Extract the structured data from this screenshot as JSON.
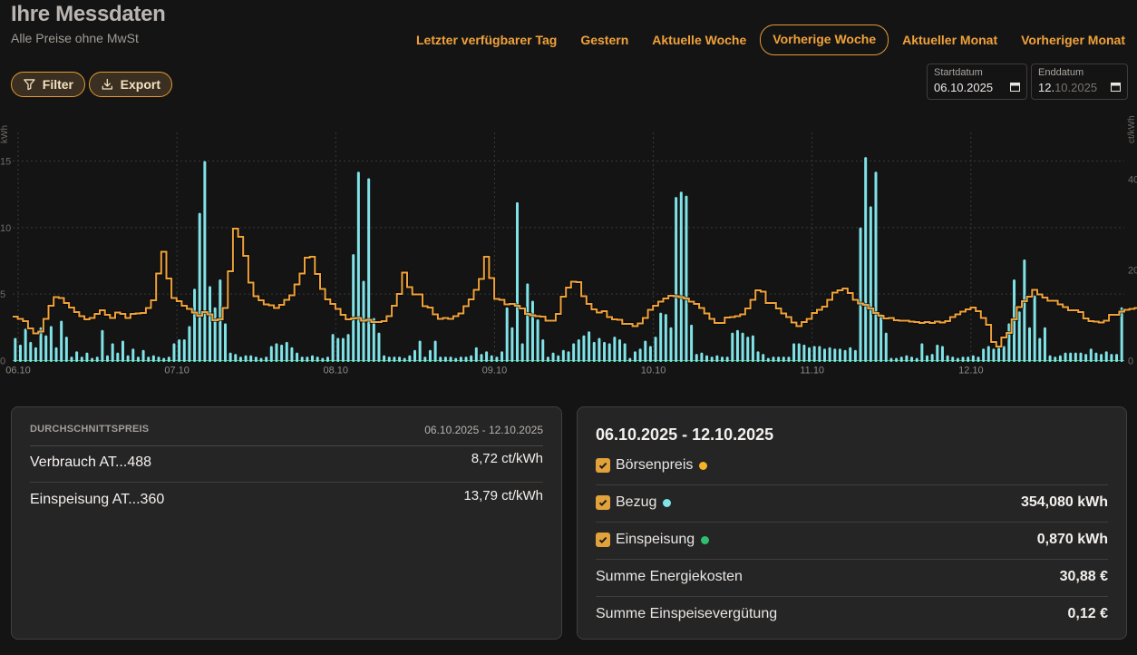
{
  "header": {
    "title": "Ihre Messdaten",
    "subtitle": "Alle Preise ohne MwSt"
  },
  "periods": [
    {
      "label": "Letzter verfügbarer Tag",
      "active": false
    },
    {
      "label": "Gestern",
      "active": false
    },
    {
      "label": "Aktuelle Woche",
      "active": false
    },
    {
      "label": "Vorherige Woche",
      "active": true
    },
    {
      "label": "Aktueller Monat",
      "active": false
    },
    {
      "label": "Vorheriger Monat",
      "active": false
    }
  ],
  "toolbar": {
    "filter_label": "Filter",
    "filter_icon": "funnel-icon",
    "export_label": "Export",
    "export_icon": "download-icon"
  },
  "date_range": {
    "start_label": "Startdatum",
    "start_value": "06.10.2025",
    "end_label": "Enddatum",
    "end_value_typed": "12.",
    "end_value_rest": "10.2025",
    "calendar_icon": "calendar-icon"
  },
  "chart_data": {
    "type": "bar",
    "x_tick_labels": [
      "06.10",
      "07.10",
      "08.10",
      "09.10",
      "10.10",
      "11.10",
      "12.10"
    ],
    "y_left": {
      "label": "kWh",
      "ticks": [
        "0",
        "5",
        "10",
        "15"
      ],
      "range": [
        0,
        15
      ]
    },
    "y_right": {
      "label": "ct/kWh",
      "ticks": [
        "0",
        "20",
        "40"
      ],
      "range": [
        0,
        40
      ]
    },
    "colors": {
      "bezug": "#7fe3e7",
      "price": "#f0a23a",
      "einspeisung": "#2fbf71"
    },
    "series": [
      {
        "name": "Bezug",
        "unit": "kWh",
        "values": [
          1.6,
          1.1,
          2.3,
          1.3,
          0.9,
          2.4,
          1.8,
          2.5,
          0.9,
          2.9,
          1.7,
          0.2,
          0.6,
          0.2,
          0.5,
          0.1,
          0.2,
          2.2,
          0.3,
          1.2,
          0.5,
          1.4,
          0.3,
          0.8,
          0.2,
          0.7,
          0.2,
          0.3,
          0.2,
          0.1,
          0.2,
          1.2,
          1.5,
          1.5,
          2.5,
          5.3,
          11.0,
          14.9,
          5.5,
          3.9,
          6.0,
          2.7,
          0.5,
          0.4,
          0.2,
          0.3,
          0.3,
          0.2,
          0.1,
          0.2,
          1.0,
          1.2,
          1.1,
          1.3,
          0.9,
          0.5,
          0.2,
          0.2,
          0.3,
          0.2,
          0.1,
          0.2,
          1.9,
          1.6,
          1.6,
          1.9,
          7.9,
          14.1,
          5.9,
          13.6,
          3.1,
          2.0,
          0.3,
          0.2,
          0.2,
          0.2,
          0.1,
          0.3,
          0.7,
          1.4,
          0.2,
          0.7,
          1.4,
          0.2,
          0.2,
          0.2,
          0.1,
          0.2,
          0.2,
          0.3,
          0.9,
          0.4,
          0.6,
          0.3,
          0.2,
          0.6,
          3.9,
          2.4,
          11.8,
          1.2,
          5.7,
          4.4,
          3.0,
          1.5,
          0.2,
          0.5,
          0.3,
          0.7,
          0.6,
          1.2,
          1.5,
          1.8,
          2.1,
          1.3,
          1.6,
          1.3,
          1.2,
          1.7,
          1.5,
          1.2,
          0.1,
          0.6,
          0.8,
          1.4,
          1.0,
          1.7,
          3.5,
          3.4,
          2.4,
          12.2,
          12.6,
          12.3,
          2.6,
          0.4,
          0.5,
          0.3,
          0.2,
          0.3,
          0.2,
          0.2,
          2.0,
          2.2,
          2.0,
          1.7,
          1.8,
          0.6,
          0.4,
          0.1,
          0.2,
          0.2,
          0.2,
          0.2,
          1.2,
          1.2,
          1.1,
          0.9,
          1.0,
          1.0,
          0.8,
          0.9,
          0.8,
          0.8,
          0.7,
          0.9,
          0.7,
          9.9,
          15.2,
          11.5,
          14.1,
          3.4,
          2.0,
          0.1,
          0.1,
          0.2,
          0.3,
          0.2,
          0.1,
          1.2,
          0.3,
          0.4,
          1.1,
          1.0,
          0.3,
          0.2,
          0.1,
          0.2,
          0.2,
          0.3,
          0.2,
          0.8,
          1.0,
          0.8,
          1.0,
          1.0,
          2.7,
          6.0,
          3.6,
          7.5,
          2.4,
          4.8,
          1.6,
          2.4,
          0.3,
          0.2,
          0.3,
          0.5,
          0.5,
          0.5,
          0.5,
          0.4,
          0.8,
          0.5,
          0.4,
          0.6,
          0.4,
          0.4,
          3.9
        ]
      },
      {
        "name": "Börsenpreis",
        "unit": "ct/kWh",
        "values": [
          9.7,
          9.2,
          8.7,
          7.1,
          6.0,
          6.4,
          9.2,
          12.1,
          14.0,
          13.8,
          12.7,
          11.7,
          10.7,
          9.8,
          9.1,
          9.4,
          10.3,
          11.1,
          10.1,
          9.4,
          10.6,
          10.3,
          9.4,
          10.3,
          10.4,
          10.5,
          11.6,
          13.3,
          19.2,
          24.0,
          18.1,
          13.8,
          13.1,
          12.1,
          11.4,
          10.6,
          9.9,
          10.7,
          10.2,
          8.9,
          9.1,
          11.6,
          19.7,
          29.1,
          27.3,
          23.1,
          17.2,
          14.2,
          13.3,
          12.4,
          12.2,
          11.6,
          12.3,
          13.4,
          14.4,
          16.8,
          19.2,
          22.7,
          22.9,
          19.1,
          15.8,
          13.5,
          12.5,
          11.4,
          10.1,
          9.1,
          9.3,
          9.4,
          8.8,
          9.0,
          8.5,
          8.5,
          8.7,
          9.8,
          12.1,
          14.7,
          19.4,
          16.2,
          14.6,
          14.6,
          12.0,
          11.7,
          10.2,
          9.2,
          9.4,
          9.2,
          9.8,
          10.4,
          12.0,
          13.5,
          15.6,
          18.0,
          22.9,
          18.2,
          13.6,
          13.4,
          12.4,
          12.5,
          12.1,
          11.5,
          10.3,
          10.0,
          9.8,
          9.7,
          8.8,
          8.8,
          10.3,
          14.1,
          16.1,
          17.4,
          17.3,
          14.2,
          12.5,
          11.3,
          10.6,
          10.9,
          9.6,
          9.1,
          9.0,
          8.1,
          8.1,
          7.6,
          8.2,
          9.4,
          11.2,
          12.1,
          13.0,
          13.7,
          14.3,
          14.2,
          14.0,
          13.7,
          13.0,
          12.5,
          11.6,
          10.4,
          9.2,
          8.3,
          8.3,
          9.5,
          9.6,
          9.8,
          10.2,
          11.5,
          13.4,
          15.5,
          15.2,
          12.7,
          12.7,
          11.5,
          10.4,
          9.6,
          8.4,
          7.6,
          8.5,
          9.2,
          10.5,
          11.2,
          11.9,
          13.4,
          15.0,
          15.5,
          15.9,
          14.9,
          13.4,
          12.6,
          12.3,
          11.5,
          10.5,
          9.9,
          9.3,
          9.4,
          8.9,
          8.8,
          8.8,
          8.6,
          8.5,
          8.3,
          8.5,
          8.3,
          8.6,
          8.4,
          8.7,
          9.6,
          10.2,
          10.8,
          11.3,
          11.7,
          10.9,
          9.4,
          7.9,
          4.1,
          3.1,
          5.1,
          6.1,
          9.1,
          11.8,
          13.1,
          14.1,
          15.6,
          14.6,
          13.9,
          13.2,
          13.2,
          12.4,
          11.8,
          11.1,
          11.1,
          10.7,
          9.3,
          8.7,
          8.6,
          8.4,
          8.8,
          10.1,
          10.1,
          10.8,
          11.2,
          11.4,
          11.6,
          11.0,
          9.3,
          7.6,
          8.4,
          8.3,
          8.6,
          9.1,
          9.8,
          11.0,
          11.9,
          12.6,
          13.6,
          13.6,
          13.3,
          13.3,
          13.8,
          12.2
        ]
      }
    ],
    "grid": true
  },
  "avg_card": {
    "heading": "DURCHSCHNITTSPREIS",
    "range": "06.10.2025 - 12.10.2025",
    "rows": [
      {
        "label": "Verbrauch AT...488",
        "value": "8,72 ct/kWh"
      },
      {
        "label": "Einspeisung AT...360",
        "value": "13,79 ct/kWh"
      }
    ]
  },
  "summary_card": {
    "title": "06.10.2025 - 12.10.2025",
    "series_toggles": [
      {
        "label": "Börsenpreis",
        "checked": true,
        "dot_color": "#f6b328",
        "value": ""
      },
      {
        "label": "Bezug",
        "checked": true,
        "dot_color": "#7fe3e7",
        "value": "354,080 kWh"
      },
      {
        "label": "Einspeisung",
        "checked": true,
        "dot_color": "#2fbf71",
        "value": "0,870 kWh"
      }
    ],
    "totals": [
      {
        "label": "Summe Energiekosten",
        "value": "30,88 €"
      },
      {
        "label": "Summe Einspeisevergütung",
        "value": "0,12 €"
      }
    ]
  }
}
